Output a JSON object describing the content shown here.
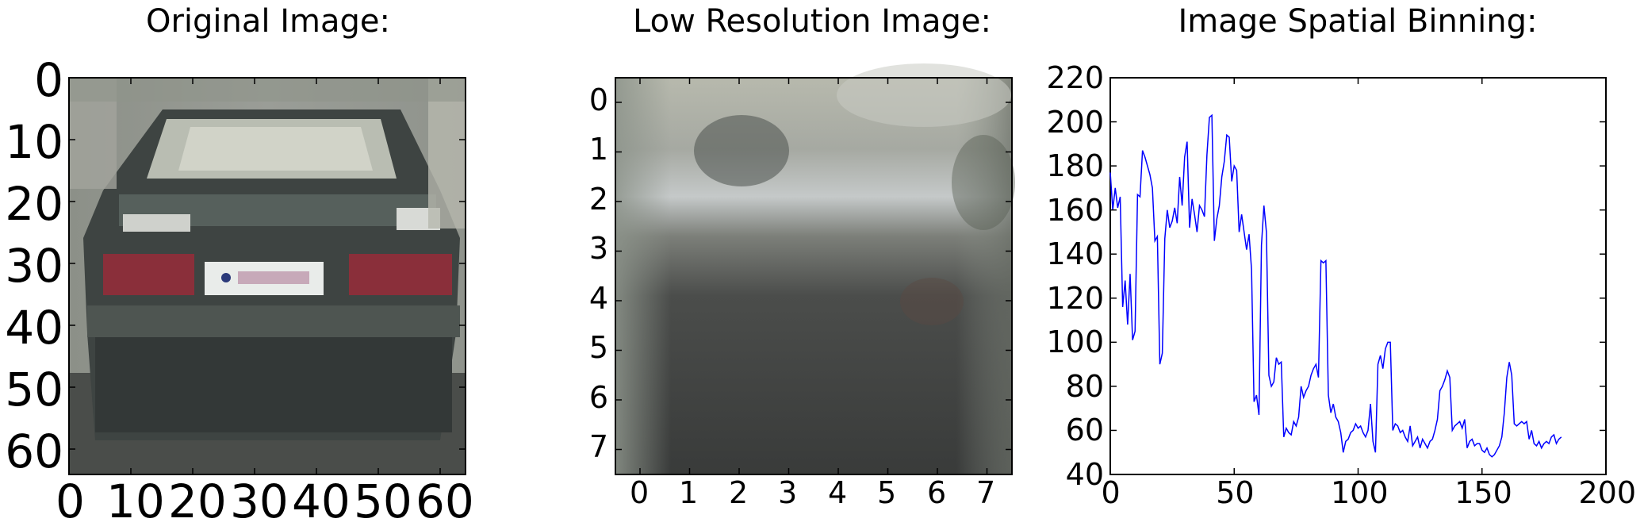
{
  "panels": {
    "original": {
      "title": "Original Image:",
      "x_ticks": [
        "0",
        "10",
        "20",
        "30",
        "40",
        "50",
        "60"
      ],
      "y_ticks": [
        "0",
        "10",
        "20",
        "30",
        "40",
        "50",
        "60"
      ]
    },
    "lowres": {
      "title": "Low Resolution Image:",
      "x_ticks": [
        "0",
        "1",
        "2",
        "3",
        "4",
        "5",
        "6",
        "7"
      ],
      "y_ticks": [
        "0",
        "1",
        "2",
        "3",
        "4",
        "5",
        "6",
        "7"
      ]
    },
    "binning": {
      "title": "Image Spatial Binning:"
    }
  },
  "chart_data": {
    "type": "line",
    "title": "Image Spatial Binning:",
    "xlabel": "",
    "ylabel": "",
    "xlim": [
      0,
      200
    ],
    "ylim": [
      40,
      220
    ],
    "x_ticks": [
      0,
      50,
      100,
      150,
      200
    ],
    "y_ticks": [
      40,
      60,
      80,
      100,
      120,
      140,
      160,
      180,
      200,
      220
    ],
    "grid": false,
    "line_color": "#0000ff",
    "series": [
      {
        "values": [
          177,
          160,
          170,
          161,
          166,
          116,
          128,
          108,
          131,
          101,
          105,
          167,
          166,
          187,
          184,
          180,
          176,
          170,
          146,
          148,
          90,
          95,
          147,
          160,
          152,
          155,
          161,
          154,
          175,
          162,
          184,
          191,
          152,
          165,
          158,
          150,
          162,
          160,
          157,
          185,
          202,
          203,
          146,
          156,
          162,
          175,
          182,
          194,
          193,
          173,
          180,
          178,
          150,
          158,
          150,
          142,
          149,
          133,
          73,
          76,
          67,
          144,
          162,
          150,
          85,
          80,
          82,
          93,
          90,
          91,
          57,
          61,
          59,
          58,
          64,
          62,
          66,
          80,
          75,
          78,
          80,
          85,
          88,
          90,
          84,
          137,
          136,
          137,
          76,
          68,
          72,
          66,
          64,
          59,
          50,
          55,
          56,
          59,
          60,
          63,
          61,
          62,
          59,
          57,
          60,
          72,
          55,
          50,
          90,
          94,
          88,
          97,
          100,
          100,
          60,
          63,
          62,
          59,
          60,
          57,
          55,
          62,
          53,
          55,
          57,
          52,
          56,
          54,
          52,
          55,
          56,
          60,
          65,
          78,
          80,
          83,
          87,
          84,
          60,
          62,
          63,
          64,
          61,
          65,
          52,
          55,
          56,
          53,
          54,
          54,
          51,
          50,
          52,
          49,
          48,
          49,
          51,
          53,
          57,
          68,
          84,
          91,
          85,
          63,
          62,
          63,
          64,
          63,
          64,
          56,
          60,
          54,
          53,
          55,
          52,
          54,
          55,
          54,
          57,
          58,
          54,
          56,
          57
        ]
      }
    ]
  }
}
